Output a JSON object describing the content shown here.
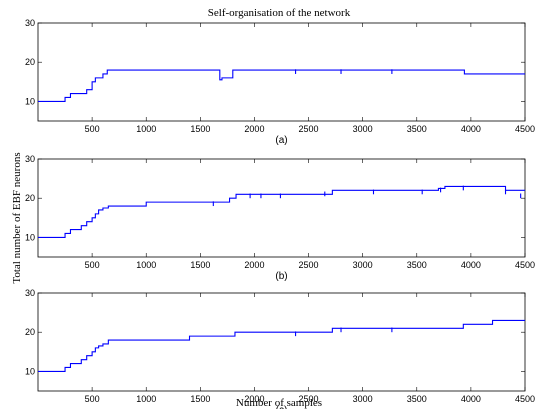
{
  "figure": {
    "title": "Self-organisation of the network",
    "ylabel": "Total number of EBF neurons",
    "xlabel": "Number of samples",
    "line_color": "#0000ff"
  },
  "chart_data": [
    {
      "type": "line",
      "panel_label": "(a)",
      "xlim": [
        0,
        4500
      ],
      "ylim": [
        5,
        30
      ],
      "xticks": [
        500,
        1000,
        1500,
        2000,
        2500,
        3000,
        3500,
        4000,
        4500
      ],
      "yticks": [
        10,
        20,
        30
      ],
      "step_x": [
        0,
        250,
        300,
        350,
        450,
        500,
        530,
        560,
        600,
        640,
        1680,
        1700,
        1780,
        1800,
        3920,
        3940,
        4500
      ],
      "step_y": [
        10,
        11,
        12,
        12,
        13,
        15,
        16,
        16,
        17,
        18,
        15.5,
        16,
        16,
        18,
        18,
        17,
        17
      ],
      "blips": [
        [
          2380,
          17
        ],
        [
          2800,
          17
        ],
        [
          3270,
          17
        ]
      ]
    },
    {
      "type": "line",
      "panel_label": "(b)",
      "xlim": [
        0,
        4500
      ],
      "ylim": [
        5,
        30
      ],
      "xticks": [
        500,
        1000,
        1500,
        2000,
        2500,
        3000,
        3500,
        4000,
        4500
      ],
      "yticks": [
        10,
        20,
        30
      ],
      "step_x": [
        0,
        250,
        300,
        400,
        450,
        500,
        530,
        560,
        600,
        650,
        1000,
        1770,
        1830,
        2720,
        3700,
        3760,
        4320,
        4350,
        4500
      ],
      "step_y": [
        10,
        11,
        12,
        13,
        14,
        15,
        16,
        17,
        17.5,
        18,
        19,
        20,
        21,
        22,
        22.5,
        23,
        22,
        22,
        22
      ],
      "blips": [
        [
          1620,
          18
        ],
        [
          1960,
          20
        ],
        [
          2060,
          20
        ],
        [
          2240,
          20
        ],
        [
          2650,
          20.5
        ],
        [
          3100,
          21
        ],
        [
          3550,
          21
        ],
        [
          3720,
          21.5
        ],
        [
          3930,
          22
        ],
        [
          4320,
          21
        ],
        [
          4460,
          20
        ]
      ]
    },
    {
      "type": "line",
      "panel_label": "(c)",
      "xlim": [
        0,
        4500
      ],
      "ylim": [
        5,
        30
      ],
      "xticks": [
        500,
        1000,
        1500,
        2000,
        2500,
        3000,
        3500,
        4000,
        4500
      ],
      "yticks": [
        10,
        20,
        30
      ],
      "step_x": [
        0,
        250,
        300,
        400,
        450,
        500,
        530,
        560,
        600,
        650,
        1400,
        1820,
        2720,
        3930,
        4200,
        4500
      ],
      "step_y": [
        10,
        11,
        12,
        13,
        14,
        15,
        16,
        16.5,
        17,
        18,
        19,
        20,
        21,
        22,
        23,
        23
      ],
      "blips": [
        [
          2380,
          19
        ],
        [
          2800,
          20
        ],
        [
          3270,
          20
        ]
      ]
    }
  ]
}
